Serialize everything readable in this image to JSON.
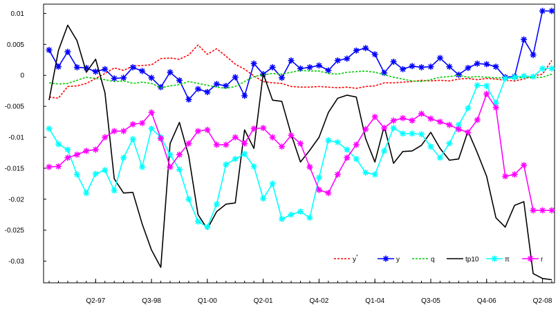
{
  "chart_data": {
    "type": "line",
    "title": "",
    "xlabel": "",
    "ylabel": "",
    "ylim": [
      -0.0335,
      0.0115
    ],
    "n_points": 55,
    "yticks": [
      0.01,
      0.005,
      0,
      -0.005,
      -0.01,
      -0.015,
      -0.02,
      -0.025,
      -0.03
    ],
    "ytick_labels": [
      "0.01",
      "0.005",
      "0",
      "-0.005",
      "-0.01",
      "-0.015",
      "-0.02",
      "-0.025",
      "-0.03"
    ],
    "xtick_labels": [
      {
        "index": 5,
        "label": "Q2-97"
      },
      {
        "index": 11,
        "label": "Q3-98"
      },
      {
        "index": 17,
        "label": "Q1-00"
      },
      {
        "index": 23,
        "label": "Q2-01"
      },
      {
        "index": 29,
        "label": "Q4-02"
      },
      {
        "index": 35,
        "label": "Q1-04"
      },
      {
        "index": 41,
        "label": "Q3-05"
      },
      {
        "index": 47,
        "label": "Q4-06"
      },
      {
        "index": 53,
        "label": "Q2-08"
      }
    ],
    "legend_position": "bottom-right",
    "series": [
      {
        "name": "y*",
        "legend_base": "y",
        "legend_sup": "*",
        "color": "#ff0000",
        "dash": "3,2",
        "marker": "none",
        "values": [
          -0.0035,
          -0.0037,
          -0.0018,
          -0.0017,
          -0.0013,
          -0.0005,
          0.0003,
          0.0012,
          0.0008,
          0.0015,
          0.0016,
          0.0017,
          0.0027,
          0.0028,
          0.0026,
          0.0033,
          0.0049,
          0.0034,
          0.0043,
          0.0031,
          0.0018,
          0.001,
          -0.0001,
          -0.001,
          -0.0012,
          -0.0013,
          -0.0018,
          -0.0019,
          -0.0019,
          -0.0018,
          -0.0019,
          -0.002,
          -0.0019,
          -0.0021,
          -0.0018,
          -0.0017,
          -0.0012,
          -0.0012,
          -0.0011,
          -0.001,
          -0.0008,
          -0.0009,
          -0.0008,
          -0.0009,
          -0.0006,
          -0.0005,
          -0.0007,
          -0.0005,
          -0.0006,
          -0.0008,
          -0.0009,
          -0.0006,
          -0.0001,
          0.0002,
          0.0024
        ]
      },
      {
        "name": "y",
        "legend_base": "y",
        "legend_sup": "",
        "color": "#0000ff",
        "dash": "",
        "marker": "star",
        "values": [
          0.0041,
          0.0014,
          0.0038,
          0.0013,
          0.0012,
          0.0006,
          0.001,
          -0.0005,
          -0.0004,
          0.0013,
          0.0007,
          -0.0004,
          -0.0019,
          0.0005,
          -0.0008,
          -0.0039,
          -0.0022,
          -0.0027,
          -0.0014,
          -0.0017,
          -0.0003,
          -0.0033,
          0.0019,
          0.0002,
          0.0013,
          -0.0004,
          0.0024,
          0.0011,
          0.0013,
          0.0016,
          0.0008,
          0.0024,
          0.0027,
          0.004,
          0.0044,
          0.0034,
          0.0004,
          0.0022,
          0.001,
          0.0015,
          0.0013,
          0.0014,
          0.0028,
          0.0014,
          0.0001,
          0.0012,
          0.0019,
          0.0018,
          0.0014,
          -0.0003,
          -0.0002,
          0.0058,
          0.0033,
          0.0104,
          0.0104
        ]
      },
      {
        "name": "q",
        "legend_base": "q",
        "legend_sup": "",
        "color": "#00cc00",
        "dash": "3,2",
        "marker": "none",
        "values": [
          -0.0012,
          -0.0014,
          -0.0013,
          -0.0008,
          -0.0003,
          -0.0005,
          -0.0007,
          -0.001,
          -0.0009,
          -0.0013,
          -0.0011,
          -0.0013,
          -0.002,
          -0.0017,
          -0.0015,
          -0.001,
          -0.0013,
          -0.0016,
          -0.0019,
          -0.0021,
          -0.0018,
          -0.001,
          -0.0002,
          0.0001,
          0.0003,
          0.0002,
          0.0005,
          0.0008,
          0.0007,
          0.0007,
          0.0003,
          0.0002,
          0.0005,
          0.0006,
          0.0007,
          0.0005,
          0.0001,
          -0.0003,
          -0.0006,
          -0.0009,
          -0.001,
          -0.0007,
          -0.0003,
          -0.0002,
          0.0,
          -0.0003,
          -0.0002,
          -0.0003,
          -0.0004,
          -0.0004,
          -0.0005,
          -0.0003,
          -0.0004,
          -0.0003,
          0.0002
        ]
      },
      {
        "name": "tp10",
        "legend_base": "tp10",
        "legend_sup": "",
        "color": "#000000",
        "dash": "",
        "marker": "none",
        "values": [
          -0.004,
          0.004,
          0.0081,
          0.0056,
          0.0005,
          0.0026,
          -0.0028,
          -0.0167,
          -0.019,
          -0.0189,
          -0.024,
          -0.0282,
          -0.031,
          -0.011,
          -0.0076,
          -0.013,
          -0.0225,
          -0.0248,
          -0.022,
          -0.0208,
          -0.0206,
          -0.0088,
          -0.0118,
          0.0003,
          -0.004,
          -0.0042,
          -0.0095,
          -0.014,
          -0.0121,
          -0.01,
          -0.006,
          -0.0037,
          -0.0032,
          -0.0035,
          -0.0102,
          -0.014,
          -0.0082,
          -0.0142,
          -0.0123,
          -0.0122,
          -0.0113,
          -0.0092,
          -0.0118,
          -0.0137,
          -0.0135,
          -0.009,
          -0.0125,
          -0.0163,
          -0.023,
          -0.0245,
          -0.021,
          -0.0204,
          -0.032,
          -0.0328,
          -0.033
        ]
      },
      {
        "name": "π",
        "legend_base": "π",
        "legend_sup": "",
        "color": "#00ffff",
        "dash": "",
        "marker": "star",
        "values": [
          -0.0086,
          -0.0111,
          -0.012,
          -0.016,
          -0.019,
          -0.0159,
          -0.0153,
          -0.0186,
          -0.0133,
          -0.0103,
          -0.0148,
          -0.0086,
          -0.01,
          -0.0128,
          -0.0152,
          -0.02,
          -0.0236,
          -0.0245,
          -0.0208,
          -0.0144,
          -0.0135,
          -0.0127,
          -0.0147,
          -0.0199,
          -0.0175,
          -0.0232,
          -0.0225,
          -0.022,
          -0.023,
          -0.0165,
          -0.0105,
          -0.0108,
          -0.012,
          -0.0135,
          -0.0157,
          -0.016,
          -0.0122,
          -0.0085,
          -0.0094,
          -0.0094,
          -0.0095,
          -0.0115,
          -0.0133,
          -0.011,
          -0.008,
          -0.0053,
          -0.0016,
          -0.0017,
          -0.0045,
          -0.0005,
          -0.0003,
          -0.0001,
          -0.0002,
          0.0011,
          0.0011
        ]
      },
      {
        "name": "r",
        "legend_base": "r",
        "legend_sup": "",
        "color": "#ff00ff",
        "dash": "",
        "marker": "star",
        "values": [
          -0.0148,
          -0.0147,
          -0.0133,
          -0.0128,
          -0.0122,
          -0.012,
          -0.01,
          -0.009,
          -0.009,
          -0.0079,
          -0.0077,
          -0.006,
          -0.0102,
          -0.0148,
          -0.0128,
          -0.011,
          -0.009,
          -0.0088,
          -0.0112,
          -0.0112,
          -0.01,
          -0.011,
          -0.0086,
          -0.0085,
          -0.01,
          -0.0115,
          -0.0097,
          -0.011,
          -0.0148,
          -0.0185,
          -0.019,
          -0.016,
          -0.0133,
          -0.0112,
          -0.0087,
          -0.0067,
          -0.0085,
          -0.0073,
          -0.0069,
          -0.0073,
          -0.0062,
          -0.007,
          -0.0075,
          -0.008,
          -0.0087,
          -0.0092,
          -0.0072,
          -0.003,
          -0.0052,
          -0.0163,
          -0.016,
          -0.0145,
          -0.0218,
          -0.0218,
          -0.0218
        ]
      }
    ]
  }
}
